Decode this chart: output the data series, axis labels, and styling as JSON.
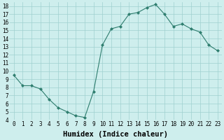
{
  "x": [
    0,
    1,
    2,
    3,
    4,
    5,
    6,
    7,
    8,
    9,
    10,
    11,
    12,
    13,
    14,
    15,
    16,
    17,
    18,
    19,
    20,
    21,
    22,
    23
  ],
  "y": [
    9.5,
    8.2,
    8.2,
    7.8,
    6.5,
    5.5,
    5.0,
    4.5,
    4.3,
    7.5,
    13.2,
    15.2,
    15.5,
    17.0,
    17.2,
    17.8,
    18.2,
    17.0,
    15.5,
    15.8,
    15.2,
    14.8,
    13.2,
    12.5
  ],
  "xlabel": "Humidex (Indice chaleur)",
  "ylim": [
    4,
    18.5
  ],
  "xlim": [
    -0.5,
    23.5
  ],
  "yticks": [
    4,
    5,
    6,
    7,
    8,
    9,
    10,
    11,
    12,
    13,
    14,
    15,
    16,
    17,
    18
  ],
  "xticks": [
    0,
    1,
    2,
    3,
    4,
    5,
    6,
    7,
    8,
    9,
    10,
    11,
    12,
    13,
    14,
    15,
    16,
    17,
    18,
    19,
    20,
    21,
    22,
    23
  ],
  "line_color": "#2e7d6e",
  "marker": "D",
  "marker_size": 2.0,
  "bg_color": "#ceeeed",
  "grid_color": "#9fd0cf",
  "tick_label_fontsize": 5.5,
  "xlabel_fontsize": 7.5
}
